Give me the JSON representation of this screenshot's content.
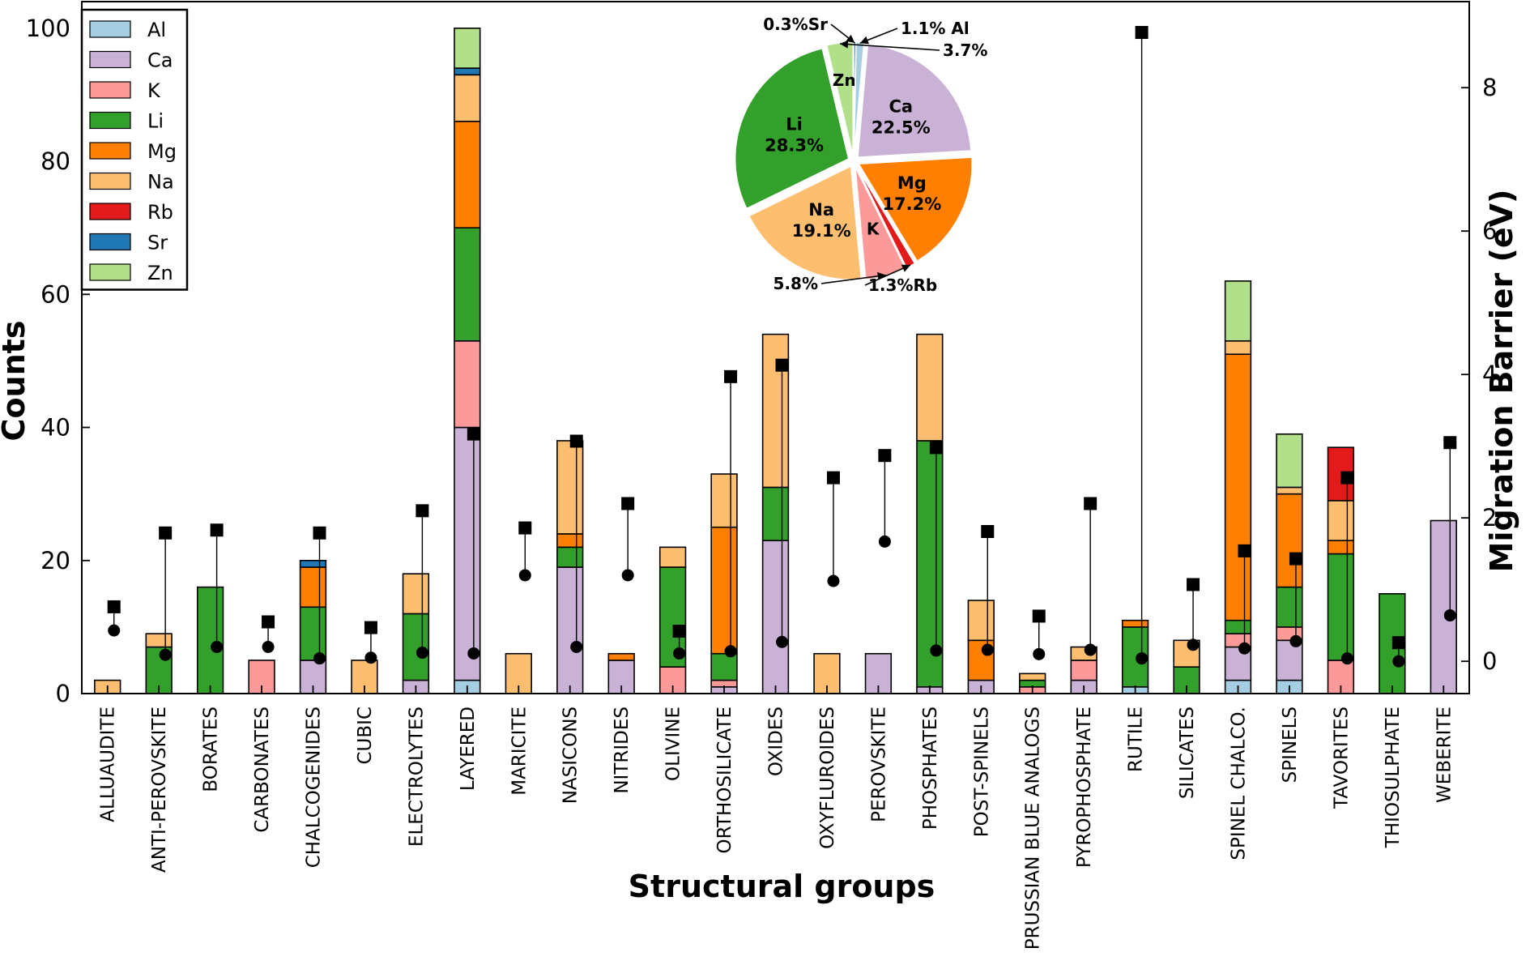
{
  "chart_data": [
    {
      "type": "bar",
      "stacked": true,
      "xlabel": "Structural groups",
      "ylabel": "Counts",
      "y2label": "Migration Barrier (eV)",
      "ylim": [
        0,
        104
      ],
      "y2lim": [
        -0.45,
        9.2
      ],
      "yticks": [
        "0",
        "20",
        "40",
        "60",
        "80",
        "100"
      ],
      "y2ticks": [
        "0",
        "2",
        "4",
        "6",
        "8"
      ],
      "legend_position": "upper-left",
      "categories": [
        "ALLUAUDITE",
        "ANTI-PEROVSKITE",
        "BORATES",
        "CARBONATES",
        "CHALCOGENIDES",
        "CUBIC",
        "ELECTROLYTES",
        "LAYERED",
        "MARICITE",
        "NASICONS",
        "NITRIDES",
        "OLIVINE",
        "ORTHOSILICATE",
        "OXIDES",
        "OXYFLUROIDES",
        "PEROVSKITE",
        "PHOSPHATES",
        "POST-SPINELS",
        "PRUSSIAN BLUE ANALOGS",
        "PYROPHOSPHATE",
        "RUTILE",
        "SILICATES",
        "SPINEL CHALCO.",
        "SPINELS",
        "TAVORITES",
        "THIOSULPHATE",
        "WEBERITE"
      ],
      "series": [
        {
          "name": "Al",
          "color": "#a6cee3",
          "values": [
            0,
            0,
            0,
            0,
            0,
            0,
            0,
            2,
            0,
            0,
            0,
            0,
            0,
            0,
            0,
            0,
            0,
            0,
            0,
            0,
            1,
            0,
            2,
            2,
            0,
            0,
            0
          ]
        },
        {
          "name": "Ca",
          "color": "#cab2d6",
          "values": [
            0,
            0,
            0,
            0,
            5,
            0,
            2,
            38,
            0,
            19,
            5,
            0,
            1,
            23,
            0,
            6,
            1,
            2,
            0,
            2,
            0,
            0,
            5,
            6,
            0,
            0,
            26
          ]
        },
        {
          "name": "K",
          "color": "#fb9a99",
          "values": [
            0,
            0,
            0,
            5,
            0,
            0,
            0,
            13,
            0,
            0,
            0,
            4,
            1,
            0,
            0,
            0,
            0,
            0,
            1,
            3,
            0,
            0,
            2,
            2,
            5,
            0,
            0
          ]
        },
        {
          "name": "Li",
          "color": "#33a02c",
          "values": [
            0,
            7,
            16,
            0,
            8,
            0,
            10,
            17,
            0,
            3,
            0,
            15,
            4,
            8,
            0,
            0,
            37,
            0,
            1,
            0,
            9,
            4,
            2,
            6,
            16,
            15,
            0
          ]
        },
        {
          "name": "Mg",
          "color": "#ff7f00",
          "values": [
            0,
            0,
            0,
            0,
            6,
            0,
            0,
            16,
            0,
            2,
            1,
            0,
            19,
            0,
            0,
            0,
            0,
            6,
            0,
            0,
            1,
            0,
            40,
            14,
            2,
            0,
            0
          ]
        },
        {
          "name": "Na",
          "color": "#fdbf6f",
          "values": [
            2,
            2,
            0,
            0,
            0,
            5,
            6,
            7,
            6,
            14,
            0,
            3,
            8,
            23,
            6,
            0,
            16,
            6,
            1,
            2,
            0,
            4,
            2,
            1,
            6,
            0,
            0
          ]
        },
        {
          "name": "Rb",
          "color": "#e31a1c",
          "values": [
            0,
            0,
            0,
            0,
            0,
            0,
            0,
            0,
            0,
            0,
            0,
            0,
            0,
            0,
            0,
            0,
            0,
            0,
            0,
            0,
            0,
            0,
            0,
            0,
            8,
            0,
            0
          ]
        },
        {
          "name": "Sr",
          "color": "#1f78b4",
          "values": [
            0,
            0,
            0,
            0,
            1,
            0,
            0,
            1,
            0,
            0,
            0,
            0,
            0,
            0,
            0,
            0,
            0,
            0,
            0,
            0,
            0,
            0,
            0,
            0,
            0,
            0,
            0
          ]
        },
        {
          "name": "Zn",
          "color": "#b2df8a",
          "values": [
            0,
            0,
            0,
            0,
            0,
            0,
            0,
            6,
            0,
            0,
            0,
            0,
            0,
            0,
            0,
            0,
            0,
            0,
            0,
            0,
            0,
            0,
            9,
            8,
            0,
            0,
            0
          ]
        }
      ],
      "barrier_min": [
        0.43,
        0.09,
        0.2,
        0.2,
        0.04,
        0.05,
        0.12,
        0.11,
        1.2,
        0.2,
        1.2,
        0.11,
        0.14,
        0.27,
        1.12,
        1.67,
        0.15,
        0.16,
        0.1,
        0.16,
        0.04,
        0.23,
        0.18,
        0.28,
        0.04,
        0.0,
        0.64
      ],
      "barrier_max": [
        0.76,
        1.79,
        1.83,
        0.55,
        1.79,
        0.47,
        2.1,
        3.17,
        1.86,
        3.07,
        2.2,
        0.42,
        3.97,
        4.13,
        2.56,
        2.87,
        2.98,
        1.81,
        0.63,
        2.2,
        8.77,
        1.07,
        1.54,
        1.43,
        2.56,
        0.26,
        3.05
      ]
    },
    {
      "type": "pie",
      "slices": [
        {
          "name": "Al",
          "value": 1.1,
          "label": "Al",
          "pct_label": "1.1%",
          "color": "#a6cee3"
        },
        {
          "name": "Ca",
          "value": 22.5,
          "label": "Ca",
          "pct_label": "22.5%",
          "color": "#cab2d6"
        },
        {
          "name": "K",
          "value": 5.8,
          "label": "K",
          "pct_label": "5.8%",
          "color": "#fb9a99"
        },
        {
          "name": "Li",
          "value": 28.3,
          "label": "Li",
          "pct_label": "28.3%",
          "color": "#33a02c"
        },
        {
          "name": "Mg",
          "value": 17.2,
          "label": "Mg",
          "pct_label": "17.2%",
          "color": "#ff7f00"
        },
        {
          "name": "Na",
          "value": 19.1,
          "label": "Na",
          "pct_label": "19.1%",
          "color": "#fdbf6f"
        },
        {
          "name": "Rb",
          "value": 1.3,
          "label": "Rb",
          "pct_label": "1.3%",
          "color": "#e31a1c"
        },
        {
          "name": "Sr",
          "value": 0.3,
          "label": "Sr",
          "pct_label": "0.3%",
          "color": "#1f78b4"
        },
        {
          "name": "Zn",
          "value": 3.7,
          "label": "Zn",
          "pct_label": "3.7%",
          "color": "#b2df8a"
        }
      ]
    }
  ]
}
